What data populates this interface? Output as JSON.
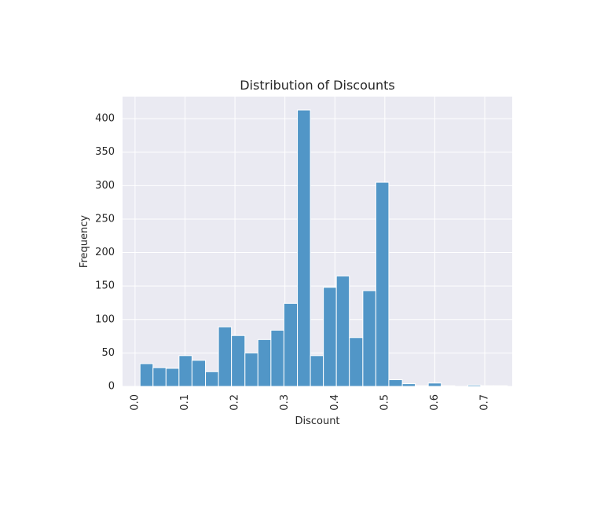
{
  "chart_data": {
    "type": "bar",
    "title": "Distribution of Discounts",
    "xlabel": "Discount",
    "ylabel": "Frequency",
    "xlim": [
      -0.025,
      0.755
    ],
    "ylim": [
      0,
      433
    ],
    "grid": true,
    "bar_color": "#5196c7",
    "background_color": "#eaeaf2",
    "x_ticks": [
      0.0,
      0.1,
      0.2,
      0.3,
      0.4,
      0.5,
      0.6,
      0.7
    ],
    "x_tick_labels": [
      "0.0",
      "0.1",
      "0.2",
      "0.3",
      "0.4",
      "0.5",
      "0.6",
      "0.7"
    ],
    "y_ticks": [
      0,
      50,
      100,
      150,
      200,
      250,
      300,
      350,
      400
    ],
    "y_tick_labels": [
      "0",
      "50",
      "100",
      "150",
      "200",
      "250",
      "300",
      "350",
      "400"
    ],
    "bins": [
      {
        "x0": 0.01,
        "x1": 0.036,
        "count": 34
      },
      {
        "x0": 0.036,
        "x1": 0.062,
        "count": 28
      },
      {
        "x0": 0.062,
        "x1": 0.088,
        "count": 27
      },
      {
        "x0": 0.088,
        "x1": 0.114,
        "count": 46
      },
      {
        "x0": 0.114,
        "x1": 0.141,
        "count": 39
      },
      {
        "x0": 0.141,
        "x1": 0.167,
        "count": 22
      },
      {
        "x0": 0.167,
        "x1": 0.193,
        "count": 89
      },
      {
        "x0": 0.193,
        "x1": 0.22,
        "count": 76
      },
      {
        "x0": 0.22,
        "x1": 0.246,
        "count": 50
      },
      {
        "x0": 0.246,
        "x1": 0.272,
        "count": 70
      },
      {
        "x0": 0.272,
        "x1": 0.298,
        "count": 84
      },
      {
        "x0": 0.298,
        "x1": 0.325,
        "count": 124
      },
      {
        "x0": 0.325,
        "x1": 0.351,
        "count": 413
      },
      {
        "x0": 0.351,
        "x1": 0.377,
        "count": 46
      },
      {
        "x0": 0.377,
        "x1": 0.403,
        "count": 148
      },
      {
        "x0": 0.403,
        "x1": 0.429,
        "count": 165
      },
      {
        "x0": 0.429,
        "x1": 0.456,
        "count": 73
      },
      {
        "x0": 0.456,
        "x1": 0.482,
        "count": 143
      },
      {
        "x0": 0.482,
        "x1": 0.508,
        "count": 305
      },
      {
        "x0": 0.508,
        "x1": 0.535,
        "count": 10
      },
      {
        "x0": 0.535,
        "x1": 0.561,
        "count": 4
      },
      {
        "x0": 0.561,
        "x1": 0.587,
        "count": 1
      },
      {
        "x0": 0.587,
        "x1": 0.613,
        "count": 5
      },
      {
        "x0": 0.613,
        "x1": 0.64,
        "count": 1
      },
      {
        "x0": 0.64,
        "x1": 0.666,
        "count": 0
      },
      {
        "x0": 0.666,
        "x1": 0.692,
        "count": 2
      },
      {
        "x0": 0.692,
        "x1": 0.718,
        "count": 1
      },
      {
        "x0": 0.718,
        "x1": 0.745,
        "count": 1
      }
    ]
  }
}
